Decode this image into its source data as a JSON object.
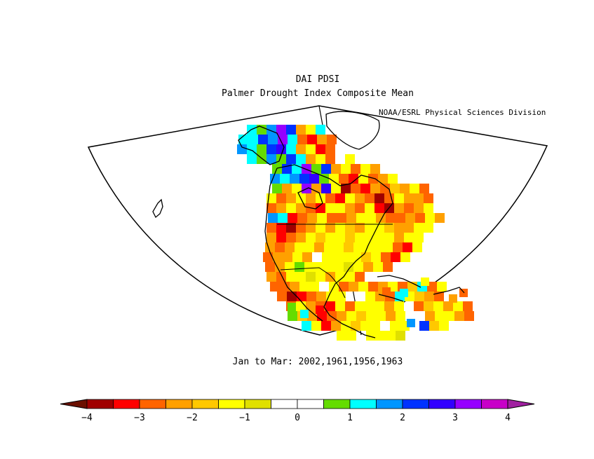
{
  "map": {
    "title": "DAI PDSI",
    "subtitle": "Palmer Drought Index   Composite Mean",
    "credit": "NOAA/ESRL Physical Sciences Division",
    "period": "Jan to Mar: 2002,1961,1956,1963",
    "region": "North America",
    "projection": "conic"
  },
  "colorbar": {
    "orientation": "horizontal",
    "min": -4,
    "max": 4,
    "ticks": [
      "-4",
      "-3",
      "-2",
      "-1",
      "0",
      "1",
      "2",
      "3",
      "4"
    ],
    "under_color": "#6b0f00",
    "over_color": "#a020a0",
    "colors": [
      "#a00000",
      "#ff0000",
      "#ff6400",
      "#ffa000",
      "#ffc800",
      "#ffff00",
      "#e0e000",
      "#ffffff",
      "#ffffff",
      "#64dc00",
      "#00ffff",
      "#0096ff",
      "#0032ff",
      "#3200ff",
      "#9600ff",
      "#c800c8"
    ]
  }
}
